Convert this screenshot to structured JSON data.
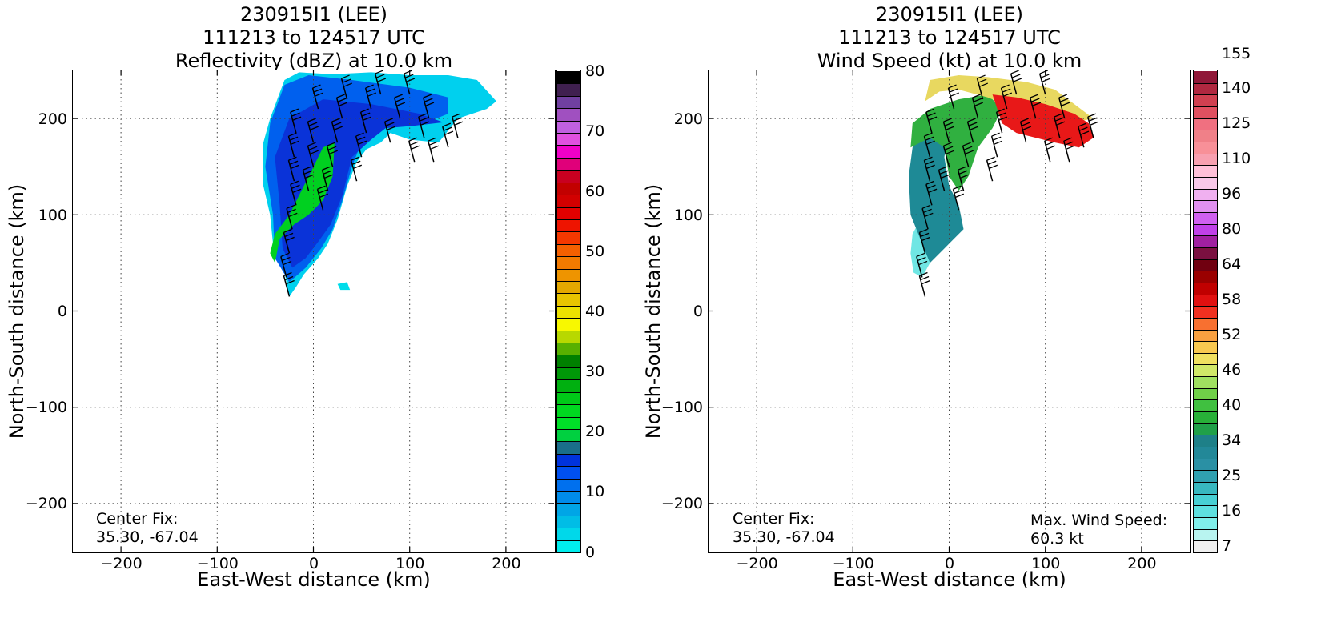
{
  "chart_data": [
    {
      "type": "heatmap",
      "title_lines": [
        "230915I1 (LEE)",
        "111213 to 124517 UTC",
        "Reflectivity (dBZ) at 10.0 km"
      ],
      "xlabel": "East-West distance (km)",
      "ylabel": "North-South distance (km)",
      "xlim": [
        -250,
        250
      ],
      "ylim": [
        -250,
        250
      ],
      "xticks": [
        -200,
        -100,
        0,
        100,
        200
      ],
      "yticks": [
        -200,
        -100,
        0,
        100,
        200
      ],
      "xtick_labels": [
        "−200",
        "−100",
        "0",
        "100",
        "200"
      ],
      "ytick_labels": [
        "−200",
        "−100",
        "0",
        "100",
        "200"
      ],
      "grid": true,
      "center_fix_label": "Center Fix:",
      "center_fix_value": "35.30, -67.04",
      "colorbar": {
        "colors": [
          "#00eeee",
          "#00d8ea",
          "#00bde6",
          "#00a5e6",
          "#008cea",
          "#0070ee",
          "#0050f0",
          "#0033dd",
          "#1a6e8a",
          "#00d040",
          "#00e028",
          "#00d820",
          "#00c818",
          "#00b010",
          "#009808",
          "#008000",
          "#58b000",
          "#b8d800",
          "#f8f800",
          "#ece000",
          "#e8c400",
          "#e4a800",
          "#ee9400",
          "#f27a00",
          "#f46000",
          "#f43800",
          "#ee1400",
          "#e20000",
          "#d20000",
          "#c20000",
          "#c80020",
          "#e0007a",
          "#f000c8",
          "#e050e0",
          "#c060e0",
          "#a050c0",
          "#7040a0",
          "#402050",
          "#000000"
        ],
        "tick_values": [
          0,
          10,
          20,
          30,
          40,
          50,
          60,
          70,
          80
        ],
        "tick_labels": [
          "0",
          "10",
          "20",
          "30",
          "40",
          "50",
          "60",
          "70",
          "80"
        ],
        "vmin": 0,
        "vmax": 80
      },
      "field_regions": [
        {
          "level": "light-blue",
          "color": "#00d0ee",
          "polygon": [
            [
              -25,
              15
            ],
            [
              -30,
              40
            ],
            [
              -42,
              70
            ],
            [
              -45,
              100
            ],
            [
              -52,
              130
            ],
            [
              -52,
              175
            ],
            [
              -45,
              200
            ],
            [
              -30,
              240
            ],
            [
              -15,
              248
            ],
            [
              20,
              246
            ],
            [
              60,
              248
            ],
            [
              100,
              245
            ],
            [
              140,
              245
            ],
            [
              170,
              240
            ],
            [
              190,
              218
            ],
            [
              180,
              210
            ],
            [
              150,
              200
            ],
            [
              130,
              175
            ],
            [
              100,
              178
            ],
            [
              80,
              185
            ],
            [
              70,
              175
            ],
            [
              55,
              168
            ],
            [
              45,
              155
            ],
            [
              35,
              130
            ],
            [
              25,
              95
            ],
            [
              15,
              70
            ],
            [
              5,
              55
            ],
            [
              -10,
              38
            ],
            [
              -18,
              25
            ]
          ]
        },
        {
          "level": "blue",
          "color": "#0060ee",
          "polygon": [
            [
              -25,
              30
            ],
            [
              -40,
              55
            ],
            [
              -42,
              100
            ],
            [
              -50,
              150
            ],
            [
              -45,
              195
            ],
            [
              -30,
              235
            ],
            [
              -5,
              245
            ],
            [
              40,
              240
            ],
            [
              100,
              232
            ],
            [
              140,
              222
            ],
            [
              140,
              205
            ],
            [
              115,
              195
            ],
            [
              85,
              200
            ],
            [
              70,
              190
            ],
            [
              50,
              175
            ],
            [
              40,
              150
            ],
            [
              30,
              115
            ],
            [
              20,
              85
            ],
            [
              8,
              65
            ],
            [
              -8,
              45
            ]
          ]
        },
        {
          "level": "dark-blue",
          "color": "#0a33d8",
          "polygon": [
            [
              -22,
              45
            ],
            [
              -32,
              65
            ],
            [
              -35,
              110
            ],
            [
              -40,
              160
            ],
            [
              -25,
              200
            ],
            [
              10,
              220
            ],
            [
              60,
              215
            ],
            [
              110,
              205
            ],
            [
              135,
              196
            ],
            [
              100,
              192
            ],
            [
              75,
              190
            ],
            [
              60,
              178
            ],
            [
              40,
              160
            ],
            [
              30,
              120
            ],
            [
              18,
              90
            ],
            [
              5,
              72
            ],
            [
              -8,
              55
            ]
          ]
        },
        {
          "level": "green",
          "color": "#00d020",
          "polygon": [
            [
              -40,
              50
            ],
            [
              -35,
              75
            ],
            [
              -20,
              90
            ],
            [
              -5,
              100
            ],
            [
              10,
              115
            ],
            [
              20,
              140
            ],
            [
              22,
              175
            ],
            [
              10,
              170
            ],
            [
              0,
              150
            ],
            [
              -10,
              130
            ],
            [
              -25,
              100
            ],
            [
              -40,
              80
            ],
            [
              -45,
              60
            ]
          ]
        },
        {
          "level": "isolated-echo",
          "color": "#00dcea",
          "polygon": [
            [
              25,
              28
            ],
            [
              35,
              30
            ],
            [
              38,
              22
            ],
            [
              28,
              22
            ]
          ]
        }
      ],
      "wind_barbs": [
        [
          -25,
          15
        ],
        [
          -28,
          35
        ],
        [
          -25,
          60
        ],
        [
          -22,
          85
        ],
        [
          -18,
          110
        ],
        [
          -20,
          135
        ],
        [
          -20,
          160
        ],
        [
          -18,
          185
        ],
        [
          -5,
          125
        ],
        [
          0,
          150
        ],
        [
          0,
          175
        ],
        [
          5,
          210
        ],
        [
          10,
          105
        ],
        [
          15,
          125
        ],
        [
          20,
          150
        ],
        [
          25,
          175
        ],
        [
          30,
          200
        ],
        [
          35,
          220
        ],
        [
          45,
          135
        ],
        [
          50,
          160
        ],
        [
          55,
          185
        ],
        [
          60,
          210
        ],
        [
          70,
          225
        ],
        [
          80,
          175
        ],
        [
          90,
          200
        ],
        [
          100,
          225
        ],
        [
          105,
          155
        ],
        [
          115,
          180
        ],
        [
          120,
          200
        ],
        [
          125,
          155
        ],
        [
          140,
          170
        ],
        [
          150,
          180
        ]
      ]
    },
    {
      "type": "heatmap",
      "title_lines": [
        "230915I1 (LEE)",
        "111213 to 124517 UTC",
        "Wind Speed (kt) at 10.0 km"
      ],
      "xlabel": "East-West distance (km)",
      "ylabel": "North-South distance (km)",
      "xlim": [
        -250,
        250
      ],
      "ylim": [
        -250,
        250
      ],
      "xticks": [
        -200,
        -100,
        0,
        100,
        200
      ],
      "yticks": [
        -200,
        -100,
        0,
        100,
        200
      ],
      "xtick_labels": [
        "−200",
        "−100",
        "0",
        "100",
        "200"
      ],
      "ytick_labels": [
        "−200",
        "−100",
        "0",
        "100",
        "200"
      ],
      "grid": true,
      "center_fix_label": "Center Fix:",
      "center_fix_value": "35.30, -67.04",
      "max_wind_label": "Max. Wind Speed:",
      "max_wind_value": "60.3 kt",
      "colorbar": {
        "colors": [
          "#f0f0f0",
          "#b8f4f0",
          "#80eeea",
          "#5ee0e0",
          "#48d0d4",
          "#38b8c0",
          "#30a0b0",
          "#2a90a4",
          "#228898",
          "#1e8088",
          "#20a048",
          "#28b038",
          "#40c040",
          "#70d048",
          "#a0e060",
          "#d0e868",
          "#f0e060",
          "#f8c850",
          "#f8a040",
          "#f87030",
          "#f03020",
          "#e01010",
          "#c00000",
          "#9a0000",
          "#700010",
          "#7a1040",
          "#a020a0",
          "#c040e8",
          "#d060f0",
          "#e090f0",
          "#f0b0f0",
          "#f8c8e8",
          "#ffc0d8",
          "#f8a0b0",
          "#f89098",
          "#f08088",
          "#f07080",
          "#e05060",
          "#d04050",
          "#b02840",
          "#901838"
        ],
        "tick_labels": [
          "7",
          "16",
          "25",
          "34",
          "40",
          "46",
          "52",
          "58",
          "64",
          "80",
          "96",
          "110",
          "125",
          "140",
          "155"
        ],
        "tick_segments": [
          0,
          3,
          6,
          9,
          12,
          15,
          18,
          21,
          24,
          27,
          30,
          33,
          36,
          39,
          42
        ]
      },
      "field_regions": [
        {
          "level": "light-cyan",
          "color": "#70e6e4",
          "polygon": [
            [
              -28,
              35
            ],
            [
              -37,
              40
            ],
            [
              -40,
              60
            ],
            [
              -38,
              80
            ],
            [
              -30,
              95
            ],
            [
              -20,
              100
            ],
            [
              -10,
              90
            ],
            [
              -15,
              70
            ],
            [
              -20,
              50
            ]
          ]
        },
        {
          "level": "teal",
          "color": "#1e8a96",
          "polygon": [
            [
              -20,
              50
            ],
            [
              -30,
              75
            ],
            [
              -40,
              100
            ],
            [
              -42,
              140
            ],
            [
              -38,
              170
            ],
            [
              -30,
              190
            ],
            [
              -10,
              200
            ],
            [
              0,
              190
            ],
            [
              -5,
              160
            ],
            [
              0,
              130
            ],
            [
              10,
              110
            ],
            [
              15,
              85
            ],
            [
              5,
              75
            ],
            [
              -5,
              65
            ]
          ]
        },
        {
          "level": "green",
          "color": "#30b040",
          "polygon": [
            [
              -40,
              170
            ],
            [
              -38,
              195
            ],
            [
              -20,
              210
            ],
            [
              10,
              220
            ],
            [
              40,
              225
            ],
            [
              55,
              210
            ],
            [
              45,
              190
            ],
            [
              30,
              170
            ],
            [
              20,
              140
            ],
            [
              10,
              125
            ],
            [
              0,
              140
            ],
            [
              -5,
              170
            ],
            [
              -20,
              180
            ]
          ]
        },
        {
          "level": "yellow",
          "color": "#e8d860",
          "polygon": [
            [
              -20,
              240
            ],
            [
              10,
              245
            ],
            [
              40,
              243
            ],
            [
              80,
              238
            ],
            [
              110,
              230
            ],
            [
              150,
              200
            ],
            [
              140,
              198
            ],
            [
              110,
              205
            ],
            [
              70,
              210
            ],
            [
              40,
              222
            ],
            [
              10,
              230
            ],
            [
              -10,
              228
            ],
            [
              -25,
              218
            ]
          ]
        },
        {
          "level": "red",
          "color": "#e81818",
          "polygon": [
            [
              45,
              225
            ],
            [
              70,
              222
            ],
            [
              100,
              215
            ],
            [
              130,
              205
            ],
            [
              145,
              195
            ],
            [
              150,
              180
            ],
            [
              135,
              170
            ],
            [
              110,
              175
            ],
            [
              90,
              180
            ],
            [
              70,
              185
            ],
            [
              55,
              195
            ],
            [
              50,
              210
            ]
          ]
        }
      ],
      "wind_barbs": [
        [
          -25,
          15
        ],
        [
          -28,
          35
        ],
        [
          -25,
          60
        ],
        [
          -22,
          85
        ],
        [
          -18,
          110
        ],
        [
          -20,
          135
        ],
        [
          -20,
          160
        ],
        [
          -18,
          185
        ],
        [
          -5,
          125
        ],
        [
          0,
          150
        ],
        [
          0,
          175
        ],
        [
          5,
          210
        ],
        [
          10,
          105
        ],
        [
          15,
          125
        ],
        [
          20,
          150
        ],
        [
          25,
          175
        ],
        [
          30,
          200
        ],
        [
          35,
          220
        ],
        [
          45,
          135
        ],
        [
          50,
          160
        ],
        [
          55,
          185
        ],
        [
          60,
          210
        ],
        [
          70,
          225
        ],
        [
          80,
          175
        ],
        [
          90,
          200
        ],
        [
          100,
          225
        ],
        [
          105,
          155
        ],
        [
          115,
          180
        ],
        [
          120,
          200
        ],
        [
          125,
          155
        ],
        [
          140,
          170
        ],
        [
          150,
          180
        ]
      ]
    }
  ]
}
